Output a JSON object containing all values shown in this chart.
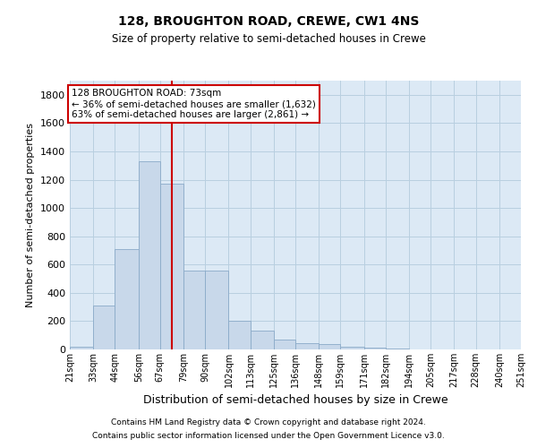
{
  "title": "128, BROUGHTON ROAD, CREWE, CW1 4NS",
  "subtitle": "Size of property relative to semi-detached houses in Crewe",
  "xlabel": "Distribution of semi-detached houses by size in Crewe",
  "ylabel": "Number of semi-detached properties",
  "footer_line1": "Contains HM Land Registry data © Crown copyright and database right 2024.",
  "footer_line2": "Contains public sector information licensed under the Open Government Licence v3.0.",
  "annotation_title": "128 BROUGHTON ROAD: 73sqm",
  "annotation_line1": "← 36% of semi-detached houses are smaller (1,632)",
  "annotation_line2": "63% of semi-detached houses are larger (2,861) →",
  "property_size": 73,
  "bar_color": "#c8d8ea",
  "bar_edge_color": "#8aaac8",
  "vline_color": "#cc0000",
  "annotation_box_color": "#cc0000",
  "background_color": "#ffffff",
  "grid_color": "#b8cfe0",
  "bin_labels": [
    "21sqm",
    "33sqm",
    "44sqm",
    "56sqm",
    "67sqm",
    "79sqm",
    "90sqm",
    "102sqm",
    "113sqm",
    "125sqm",
    "136sqm",
    "148sqm",
    "159sqm",
    "171sqm",
    "182sqm",
    "194sqm",
    "205sqm",
    "217sqm",
    "228sqm",
    "240sqm",
    "251sqm"
  ],
  "bin_edges": [
    21,
    33,
    44,
    56,
    67,
    79,
    90,
    102,
    113,
    125,
    136,
    148,
    159,
    171,
    182,
    194,
    205,
    217,
    228,
    240,
    251
  ],
  "bar_heights": [
    20,
    310,
    710,
    1330,
    1170,
    560,
    560,
    200,
    130,
    70,
    45,
    35,
    18,
    10,
    5,
    3,
    2,
    1,
    1,
    1
  ],
  "ylim": [
    0,
    1900
  ],
  "yticks": [
    0,
    200,
    400,
    600,
    800,
    1000,
    1200,
    1400,
    1600,
    1800
  ]
}
